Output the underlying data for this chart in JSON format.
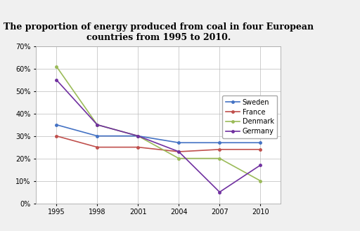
{
  "title": "The proportion of energy produced from coal in four European\ncountries from 1995 to 2010.",
  "x_values": [
    1995,
    1998,
    2001,
    2004,
    2007,
    2010
  ],
  "series": {
    "Sweden": [
      0.35,
      0.3,
      0.3,
      0.27,
      0.27,
      0.27
    ],
    "France": [
      0.3,
      0.25,
      0.25,
      0.23,
      0.24,
      0.24
    ],
    "Denmark": [
      0.61,
      0.35,
      0.3,
      0.2,
      0.2,
      0.1
    ],
    "Germany": [
      0.55,
      0.35,
      0.3,
      0.23,
      0.05,
      0.17
    ]
  },
  "colors": {
    "Sweden": "#4472C4",
    "France": "#C0504D",
    "Denmark": "#9BBB59",
    "Germany": "#7030A0"
  },
  "ylim": [
    0.0,
    0.7
  ],
  "yticks": [
    0.0,
    0.1,
    0.2,
    0.3,
    0.4,
    0.5,
    0.6,
    0.7
  ],
  "xticks": [
    1995,
    1998,
    2001,
    2004,
    2007,
    2010
  ],
  "legend_order": [
    "Sweden",
    "France",
    "Denmark",
    "Germany"
  ],
  "background_color": "#f0f0f0",
  "plot_bg_color": "#ffffff",
  "title_fontsize": 9,
  "legend_fontsize": 7,
  "tick_fontsize": 7,
  "line_width": 1.2,
  "marker": "o",
  "marker_size": 2.5
}
